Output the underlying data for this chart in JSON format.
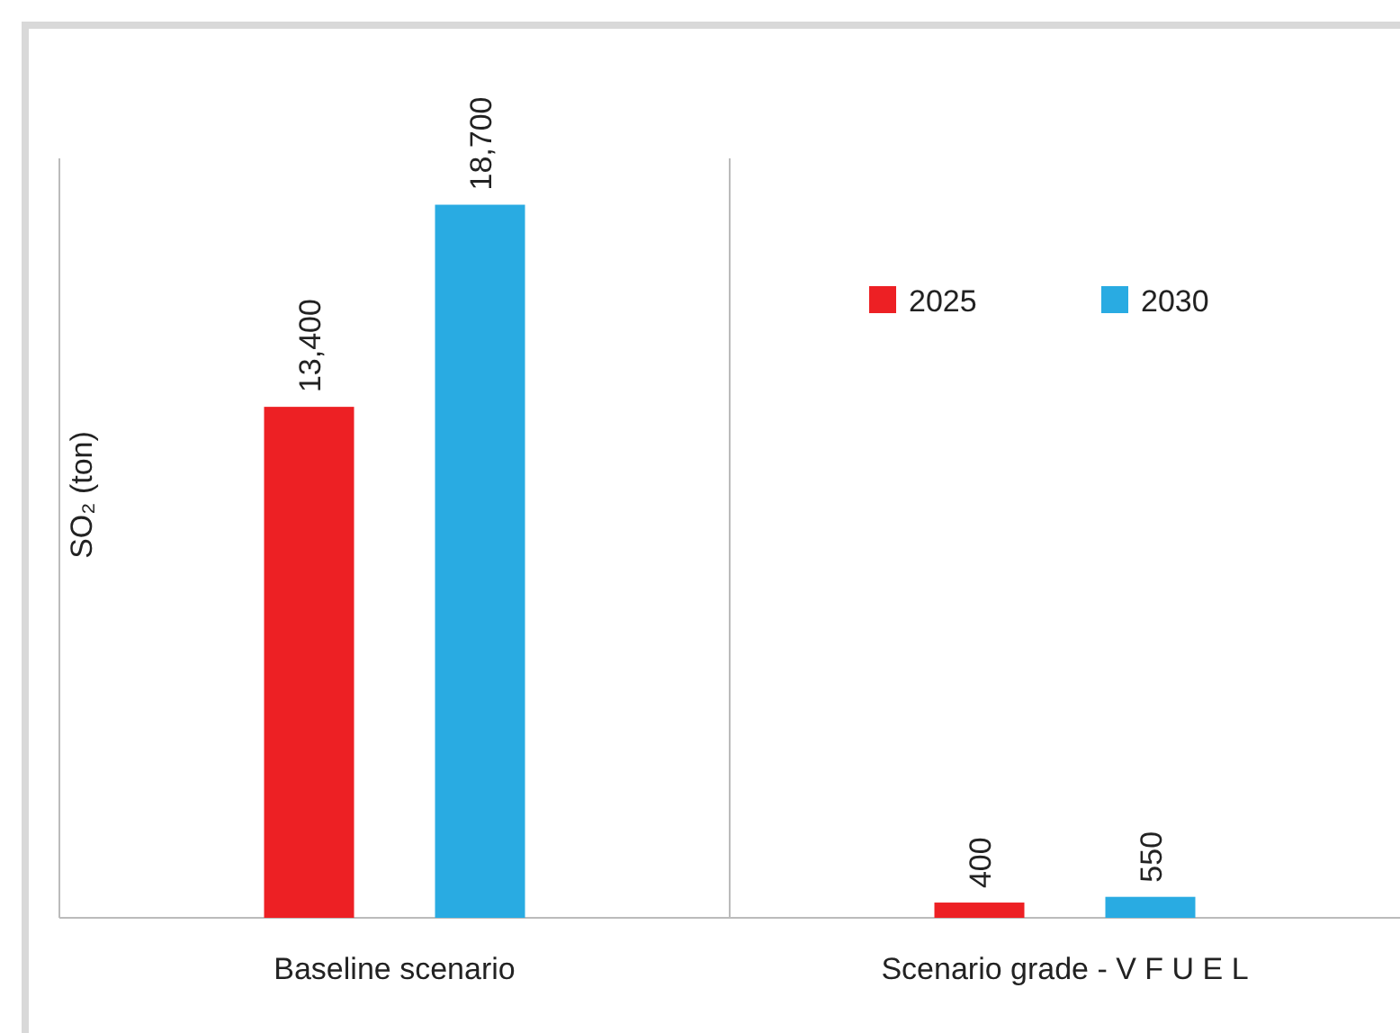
{
  "chart_data": {
    "type": "bar",
    "ylabel": "SO₂ (ton)",
    "categories": [
      "Baseline scenario",
      "Scenario grade - V  F U E L"
    ],
    "series": [
      {
        "name": "2025",
        "color": "#ed2024",
        "values": [
          13400,
          400
        ],
        "value_labels": [
          "13,400",
          "400"
        ]
      },
      {
        "name": "2030",
        "color": "#29abe2",
        "values": [
          18700,
          550
        ],
        "value_labels": [
          "18,700",
          "550"
        ]
      }
    ],
    "relative": false,
    "legend": "top right",
    "grid": false
  }
}
